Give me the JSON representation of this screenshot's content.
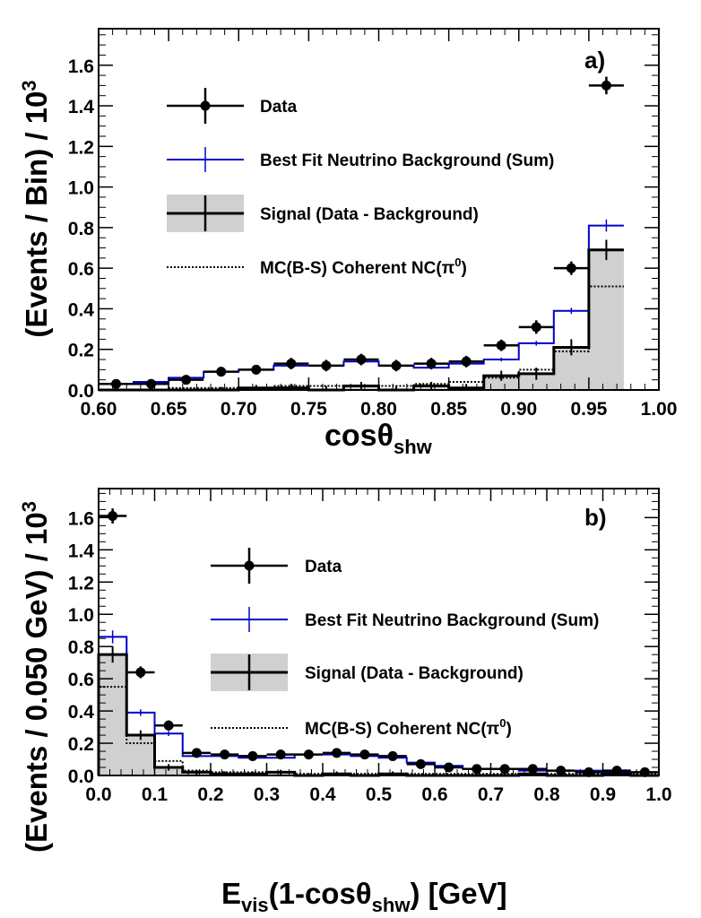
{
  "chart_data": [
    {
      "type": "histogram",
      "panel_label": "a)",
      "xlabel": "cosθ",
      "xlabel_sub": "shw",
      "ylabel": "(Events / Bin) / 10",
      "ylabel_sup": "3",
      "xlim": [
        0.6,
        1.0
      ],
      "ylim": [
        0,
        1.78
      ],
      "x_ticks": [
        "0.60",
        "0.65",
        "0.70",
        "0.75",
        "0.80",
        "0.85",
        "0.90",
        "0.95",
        "1.00"
      ],
      "y_ticks": [
        "0.0",
        "0.2",
        "0.4",
        "0.6",
        "0.8",
        "1.0",
        "1.2",
        "1.4",
        "1.6"
      ],
      "bin_edges": [
        0.6,
        0.625,
        0.65,
        0.675,
        0.7,
        0.725,
        0.75,
        0.775,
        0.8,
        0.825,
        0.85,
        0.875,
        0.9,
        0.925,
        0.95,
        0.975,
        1.0
      ],
      "series": [
        {
          "key": "data",
          "values": [
            0.03,
            0.03,
            0.05,
            0.09,
            0.1,
            0.13,
            0.12,
            0.15,
            0.12,
            0.13,
            0.14,
            0.22,
            0.31,
            0.6,
            1.5,
            null
          ],
          "errors": [
            0.01,
            0.01,
            0.01,
            0.01,
            0.01,
            0.015,
            0.015,
            0.015,
            0.015,
            0.015,
            0.015,
            0.015,
            0.02,
            0.02,
            0.03,
            null
          ]
        },
        {
          "key": "background",
          "values": [
            0.03,
            0.04,
            0.06,
            0.09,
            0.1,
            0.12,
            0.12,
            0.14,
            0.12,
            0.11,
            0.13,
            0.15,
            0.23,
            0.39,
            0.81,
            null
          ],
          "errors": [
            0.005,
            0.005,
            0.005,
            0.006,
            0.006,
            0.007,
            0.007,
            0.008,
            0.007,
            0.007,
            0.008,
            0.009,
            0.012,
            0.015,
            0.03,
            null
          ]
        },
        {
          "key": "signal",
          "values": [
            0.0,
            -0.01,
            -0.01,
            0.0,
            0.01,
            0.01,
            0.0,
            0.02,
            0.0,
            0.02,
            0.01,
            0.07,
            0.08,
            0.21,
            0.69,
            null
          ],
          "errors": [
            0.015,
            0.015,
            0.015,
            0.015,
            0.015,
            0.02,
            0.02,
            0.02,
            0.02,
            0.02,
            0.02,
            0.025,
            0.03,
            0.04,
            0.05,
            null
          ]
        },
        {
          "key": "mc",
          "values": [
            0.0,
            0.0,
            0.01,
            0.01,
            0.01,
            0.02,
            0.02,
            0.02,
            0.02,
            0.03,
            0.04,
            0.06,
            0.1,
            0.19,
            0.51,
            null
          ]
        }
      ]
    },
    {
      "type": "histogram",
      "panel_label": "b)",
      "xlabel": "E",
      "xlabel_sub": "vis",
      "xlabel_mid": "(1-cosθ",
      "xlabel_sub2": "shw",
      "xlabel_end": ") [GeV]",
      "ylabel": "(Events / 0.050 GeV) / 10",
      "ylabel_sup": "3",
      "xlim": [
        0.0,
        1.0
      ],
      "ylim": [
        0,
        1.78
      ],
      "x_ticks": [
        "0.0",
        "0.1",
        "0.2",
        "0.3",
        "0.4",
        "0.5",
        "0.6",
        "0.7",
        "0.8",
        "0.9",
        "1.0"
      ],
      "y_ticks": [
        "0.0",
        "0.2",
        "0.4",
        "0.6",
        "0.8",
        "1.0",
        "1.2",
        "1.4",
        "1.6"
      ],
      "bin_edges": [
        0.0,
        0.05,
        0.1,
        0.15,
        0.2,
        0.25,
        0.3,
        0.35,
        0.4,
        0.45,
        0.5,
        0.55,
        0.6,
        0.65,
        0.7,
        0.75,
        0.8,
        0.85,
        0.9,
        0.95,
        1.0
      ],
      "series": [
        {
          "key": "data",
          "values": [
            1.61,
            0.64,
            0.31,
            0.14,
            0.13,
            0.12,
            0.13,
            0.13,
            0.14,
            0.13,
            0.12,
            0.07,
            0.05,
            0.04,
            0.04,
            0.04,
            0.03,
            0.02,
            0.03,
            0.02
          ],
          "errors": [
            0.03,
            0.02,
            0.015,
            0.01,
            0.01,
            0.01,
            0.01,
            0.01,
            0.01,
            0.01,
            0.01,
            0.01,
            0.008,
            0.008,
            0.008,
            0.008,
            0.007,
            0.007,
            0.007,
            0.007
          ]
        },
        {
          "key": "background",
          "values": [
            0.86,
            0.39,
            0.26,
            0.12,
            0.12,
            0.11,
            0.11,
            0.13,
            0.13,
            0.12,
            0.11,
            0.08,
            0.06,
            0.04,
            0.04,
            0.03,
            0.03,
            0.03,
            0.02,
            0.02
          ],
          "errors": [
            0.04,
            0.02,
            0.015,
            0.01,
            0.01,
            0.01,
            0.01,
            0.01,
            0.01,
            0.01,
            0.01,
            0.008,
            0.006,
            0.005,
            0.005,
            0.005,
            0.005,
            0.005,
            0.005,
            0.005
          ]
        },
        {
          "key": "signal",
          "values": [
            0.75,
            0.25,
            0.05,
            0.02,
            0.01,
            0.01,
            0.02,
            0.0,
            0.01,
            0.0,
            0.01,
            -0.01,
            -0.01,
            0.0,
            0.0,
            0.01,
            0.0,
            -0.01,
            0.01,
            0.0
          ],
          "errors": [
            0.05,
            0.03,
            0.02,
            0.015,
            0.015,
            0.015,
            0.015,
            0.015,
            0.015,
            0.015,
            0.015,
            0.012,
            0.01,
            0.01,
            0.01,
            0.01,
            0.01,
            0.01,
            0.01,
            0.01
          ]
        },
        {
          "key": "mc",
          "values": [
            0.55,
            0.2,
            0.09,
            0.03,
            0.02,
            0.02,
            0.02,
            0.01,
            0.01,
            0.01,
            0.01,
            0.01,
            0.01,
            0.01,
            0.01,
            0.01,
            0.01,
            0.01,
            0.01,
            0.01
          ]
        }
      ]
    }
  ],
  "legend": {
    "data_label": "Data",
    "background_label": "Best Fit Neutrino Background (Sum)",
    "signal_label": "Signal (Data - Background)",
    "mc_label": "MC(B-S) Coherent NC(π",
    "mc_sup": "0",
    "mc_close": ")"
  },
  "colors": {
    "data": "#000000",
    "background": "#0000cc",
    "signal_fill": "#d0d0d0",
    "signal_line": "#000000",
    "mc": "#000000"
  }
}
